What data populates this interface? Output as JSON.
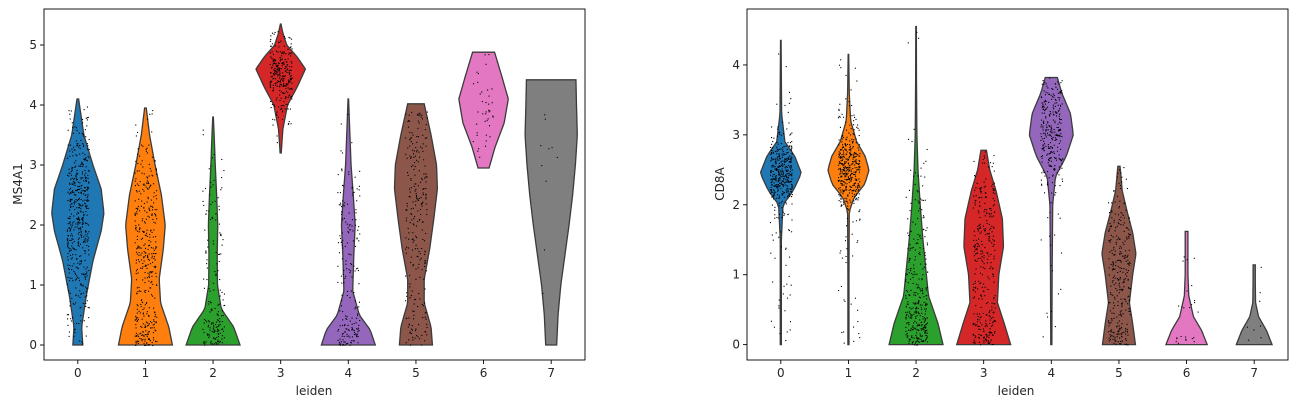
{
  "chart_data": [
    {
      "type": "violin",
      "xlabel": "leiden",
      "ylabel": "MS4A1",
      "categories": [
        "0",
        "1",
        "2",
        "3",
        "4",
        "5",
        "6",
        "7"
      ],
      "ylim": [
        -0.25,
        5.6
      ],
      "yticks": [
        0,
        1,
        2,
        3,
        4,
        5
      ],
      "ytick_labels": [
        "0",
        "1",
        "2",
        "3",
        "4",
        "5"
      ],
      "colors": [
        "#1f77b4",
        "#ff7f0e",
        "#2ca02c",
        "#d62728",
        "#9467bd",
        "#8c564b",
        "#e377c2",
        "#7f7f7f"
      ],
      "violins": [
        {
          "min": 0,
          "max": 4.1,
          "profile": [
            [
              0,
              0.18
            ],
            [
              0.3,
              0.14
            ],
            [
              0.8,
              0.3
            ],
            [
              1.4,
              0.55
            ],
            [
              1.9,
              0.85
            ],
            [
              2.2,
              0.95
            ],
            [
              2.6,
              0.85
            ],
            [
              3.0,
              0.55
            ],
            [
              3.5,
              0.22
            ],
            [
              4.1,
              0.03
            ]
          ],
          "points": 500
        },
        {
          "min": 0,
          "max": 3.95,
          "profile": [
            [
              0,
              0.98
            ],
            [
              0.3,
              0.85
            ],
            [
              0.7,
              0.55
            ],
            [
              1.1,
              0.5
            ],
            [
              1.6,
              0.65
            ],
            [
              2.0,
              0.72
            ],
            [
              2.5,
              0.58
            ],
            [
              3.0,
              0.35
            ],
            [
              3.5,
              0.15
            ],
            [
              3.95,
              0.03
            ]
          ],
          "points": 400
        },
        {
          "min": 0,
          "max": 3.8,
          "profile": [
            [
              0,
              0.98
            ],
            [
              0.3,
              0.75
            ],
            [
              0.6,
              0.3
            ],
            [
              1.0,
              0.16
            ],
            [
              1.5,
              0.15
            ],
            [
              2.0,
              0.17
            ],
            [
              2.5,
              0.13
            ],
            [
              3.0,
              0.08
            ],
            [
              3.5,
              0.04
            ],
            [
              3.8,
              0.01
            ]
          ],
          "points": 180
        },
        {
          "min": 3.2,
          "max": 5.35,
          "profile": [
            [
              3.2,
              0.02
            ],
            [
              3.6,
              0.08
            ],
            [
              4.0,
              0.25
            ],
            [
              4.3,
              0.6
            ],
            [
              4.6,
              0.9
            ],
            [
              4.8,
              0.6
            ],
            [
              5.0,
              0.22
            ],
            [
              5.2,
              0.08
            ],
            [
              5.35,
              0.01
            ]
          ],
          "points": 280
        },
        {
          "min": 0,
          "max": 4.1,
          "profile": [
            [
              0,
              0.98
            ],
            [
              0.25,
              0.8
            ],
            [
              0.5,
              0.4
            ],
            [
              0.9,
              0.16
            ],
            [
              1.5,
              0.2
            ],
            [
              2.0,
              0.25
            ],
            [
              2.5,
              0.18
            ],
            [
              3.0,
              0.1
            ],
            [
              3.6,
              0.05
            ],
            [
              4.1,
              0.01
            ]
          ],
          "points": 200
        },
        {
          "min": 0,
          "max": 4.02,
          "profile": [
            [
              0,
              0.6
            ],
            [
              0.3,
              0.55
            ],
            [
              0.7,
              0.3
            ],
            [
              1.1,
              0.3
            ],
            [
              1.6,
              0.5
            ],
            [
              2.1,
              0.65
            ],
            [
              2.6,
              0.78
            ],
            [
              3.0,
              0.75
            ],
            [
              3.5,
              0.55
            ],
            [
              4.02,
              0.3
            ]
          ],
          "points": 260
        },
        {
          "min": 2.95,
          "max": 4.88,
          "profile": [
            [
              2.95,
              0.2
            ],
            [
              3.3,
              0.42
            ],
            [
              3.7,
              0.75
            ],
            [
              4.1,
              0.9
            ],
            [
              4.5,
              0.65
            ],
            [
              4.88,
              0.4
            ]
          ],
          "points": 40
        },
        {
          "min": 0,
          "max": 4.42,
          "profile": [
            [
              0,
              0.2
            ],
            [
              0.5,
              0.25
            ],
            [
              1.0,
              0.35
            ],
            [
              1.5,
              0.5
            ],
            [
              2.0,
              0.65
            ],
            [
              2.5,
              0.78
            ],
            [
              3.0,
              0.88
            ],
            [
              3.5,
              0.95
            ],
            [
              4.0,
              0.92
            ],
            [
              4.42,
              0.9
            ]
          ],
          "points": 10
        }
      ]
    },
    {
      "type": "violin",
      "xlabel": "leiden",
      "ylabel": "CD8A",
      "categories": [
        "0",
        "1",
        "2",
        "3",
        "4",
        "5",
        "6",
        "7"
      ],
      "ylim": [
        -0.22,
        4.8
      ],
      "yticks": [
        0,
        1,
        2,
        3,
        4
      ],
      "ytick_labels": [
        "0",
        "1",
        "2",
        "3",
        "4"
      ],
      "colors": [
        "#1f77b4",
        "#ff7f0e",
        "#2ca02c",
        "#d62728",
        "#9467bd",
        "#8c564b",
        "#e377c2",
        "#7f7f7f"
      ],
      "violins": [
        {
          "min": 0,
          "max": 4.35,
          "profile": [
            [
              0,
              0.02
            ],
            [
              0.8,
              0.02
            ],
            [
              1.5,
              0.02
            ],
            [
              2.0,
              0.08
            ],
            [
              2.2,
              0.45
            ],
            [
              2.45,
              0.75
            ],
            [
              2.7,
              0.5
            ],
            [
              2.9,
              0.15
            ],
            [
              3.3,
              0.03
            ],
            [
              4.35,
              0.01
            ]
          ],
          "points": 420
        },
        {
          "min": 0,
          "max": 4.15,
          "profile": [
            [
              0,
              0.02
            ],
            [
              1.0,
              0.02
            ],
            [
              1.9,
              0.03
            ],
            [
              2.1,
              0.2
            ],
            [
              2.3,
              0.6
            ],
            [
              2.5,
              0.75
            ],
            [
              2.7,
              0.6
            ],
            [
              2.9,
              0.3
            ],
            [
              3.2,
              0.08
            ],
            [
              3.6,
              0.03
            ],
            [
              4.15,
              0.01
            ]
          ],
          "points": 420
        },
        {
          "min": 0,
          "max": 4.55,
          "profile": [
            [
              0,
              0.98
            ],
            [
              0.3,
              0.8
            ],
            [
              0.7,
              0.45
            ],
            [
              1.1,
              0.35
            ],
            [
              1.5,
              0.25
            ],
            [
              2.0,
              0.15
            ],
            [
              2.5,
              0.07
            ],
            [
              3.0,
              0.03
            ],
            [
              3.8,
              0.015
            ],
            [
              4.55,
              0.01
            ]
          ],
          "points": 330
        },
        {
          "min": 0,
          "max": 2.78,
          "profile": [
            [
              0,
              0.98
            ],
            [
              0.3,
              0.75
            ],
            [
              0.6,
              0.5
            ],
            [
              1.0,
              0.55
            ],
            [
              1.4,
              0.72
            ],
            [
              1.8,
              0.68
            ],
            [
              2.2,
              0.45
            ],
            [
              2.5,
              0.22
            ],
            [
              2.78,
              0.1
            ]
          ],
          "points": 330
        },
        {
          "min": 0,
          "max": 3.82,
          "profile": [
            [
              0,
              0.02
            ],
            [
              1.0,
              0.03
            ],
            [
              2.0,
              0.05
            ],
            [
              2.4,
              0.15
            ],
            [
              2.7,
              0.55
            ],
            [
              3.0,
              0.8
            ],
            [
              3.3,
              0.7
            ],
            [
              3.6,
              0.38
            ],
            [
              3.82,
              0.22
            ]
          ],
          "points": 300
        },
        {
          "min": 0,
          "max": 2.55,
          "profile": [
            [
              0,
              0.6
            ],
            [
              0.3,
              0.5
            ],
            [
              0.6,
              0.38
            ],
            [
              1.0,
              0.5
            ],
            [
              1.3,
              0.62
            ],
            [
              1.6,
              0.5
            ],
            [
              1.9,
              0.3
            ],
            [
              2.2,
              0.12
            ],
            [
              2.55,
              0.04
            ]
          ],
          "points": 300
        },
        {
          "min": 0,
          "max": 1.62,
          "profile": [
            [
              0,
              0.75
            ],
            [
              0.2,
              0.55
            ],
            [
              0.4,
              0.25
            ],
            [
              0.7,
              0.08
            ],
            [
              1.0,
              0.05
            ],
            [
              1.3,
              0.05
            ],
            [
              1.62,
              0.05
            ]
          ],
          "points": 25
        },
        {
          "min": 0,
          "max": 1.14,
          "profile": [
            [
              0,
              0.65
            ],
            [
              0.2,
              0.45
            ],
            [
              0.4,
              0.16
            ],
            [
              0.6,
              0.05
            ],
            [
              0.9,
              0.04
            ],
            [
              1.14,
              0.04
            ]
          ],
          "points": 8
        }
      ]
    }
  ]
}
